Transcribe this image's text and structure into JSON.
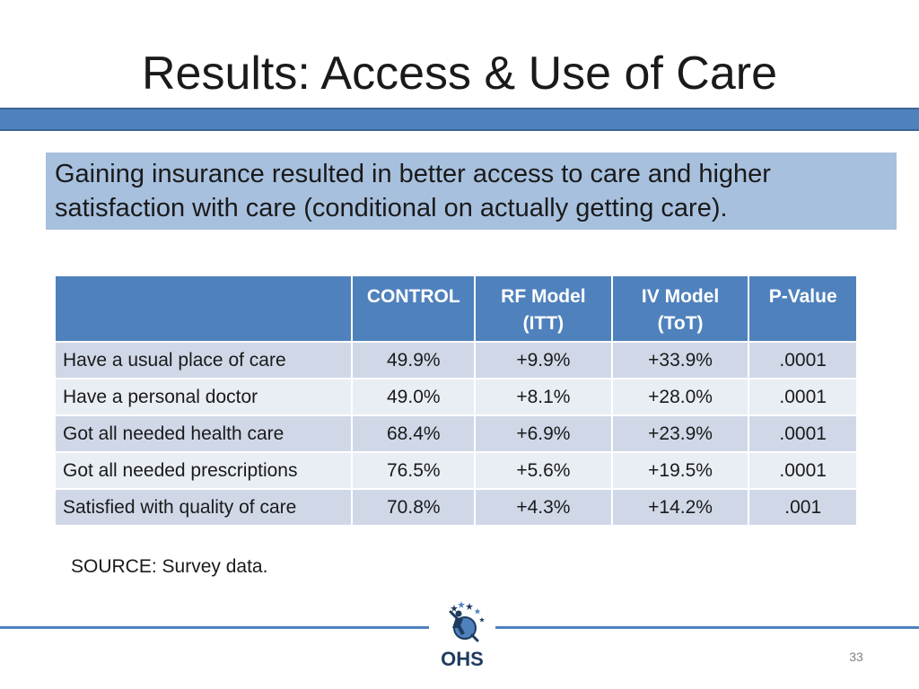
{
  "slide": {
    "title": "Results: Access & Use of Care",
    "callout": "Gaining insurance resulted in better access to care and higher satisfaction with care (conditional on actually getting care).",
    "source": "SOURCE: Survey data.",
    "page_number": "33",
    "logo_text": "OHS"
  },
  "table": {
    "headers": {
      "blank": "",
      "control": "CONTROL",
      "rf_line1": "RF Model",
      "rf_line2": "(ITT)",
      "iv_line1": "IV Model",
      "iv_line2": "(ToT)",
      "pvalue": "P-Value"
    },
    "rows": [
      {
        "label": "Have a usual place of care",
        "control": "49.9%",
        "rf": "+9.9%",
        "iv": "+33.9%",
        "p": ".0001"
      },
      {
        "label": "Have a personal doctor",
        "control": "49.0%",
        "rf": "+8.1%",
        "iv": "+28.0%",
        "p": ".0001"
      },
      {
        "label": "Got all needed health care",
        "control": "68.4%",
        "rf": "+6.9%",
        "iv": "+23.9%",
        "p": ".0001"
      },
      {
        "label": "Got all needed prescriptions",
        "control": "76.5%",
        "rf": "+5.6%",
        "iv": "+19.5%",
        "p": ".0001"
      },
      {
        "label": "Satisfied with quality of care",
        "control": "70.8%",
        "rf": "+4.3%",
        "iv": "+14.2%",
        "p": ".001"
      }
    ]
  },
  "colors": {
    "accent": "#4f81bd",
    "callout_bg": "#a7c0de",
    "row_dark": "#d0d8e8",
    "row_light": "#e9edf4",
    "logo_dark": "#1f3b5e"
  },
  "icons": {
    "logo": "ohs-logo-icon"
  }
}
